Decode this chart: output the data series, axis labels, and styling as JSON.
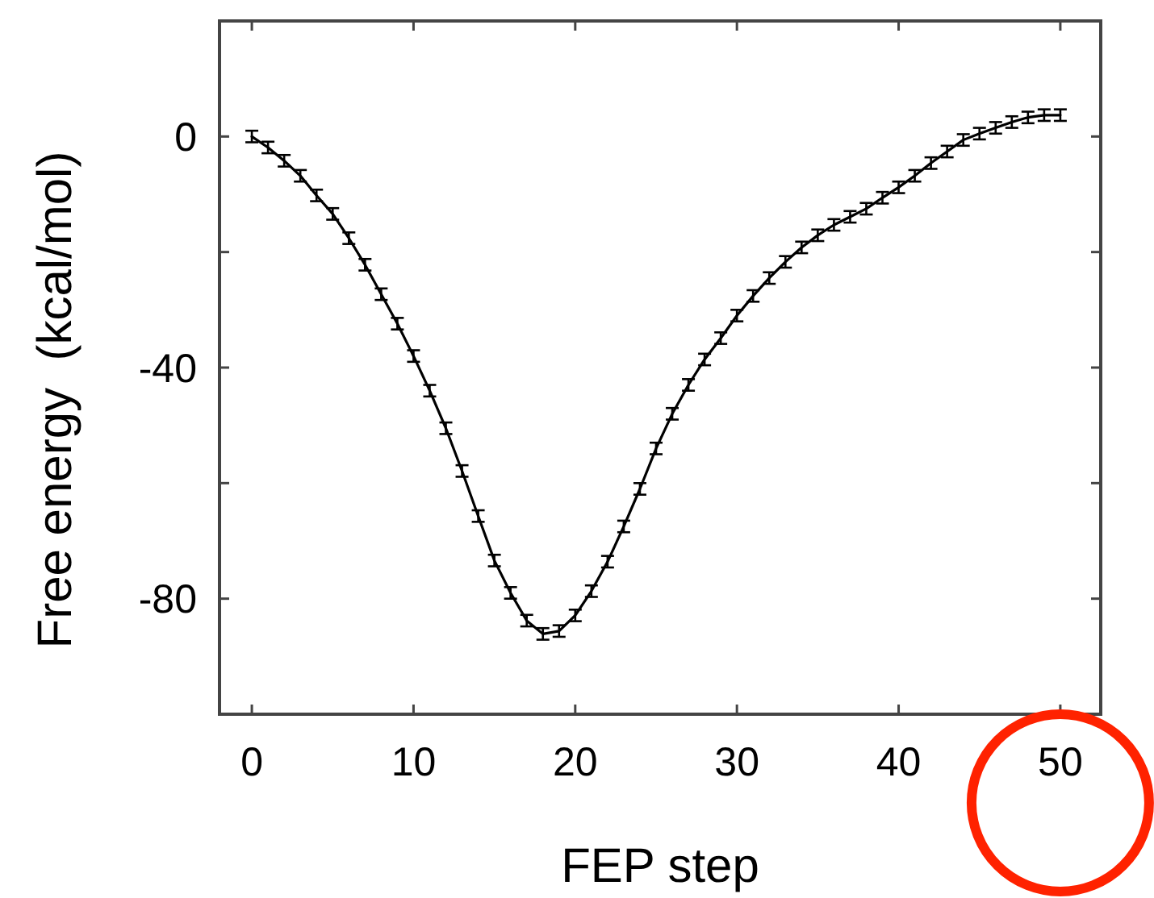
{
  "chart_data": {
    "type": "line",
    "xlabel": "FEP step",
    "ylabel": "Free energy  (kcal/mol)",
    "x": [
      0,
      1,
      2,
      3,
      4,
      5,
      6,
      7,
      8,
      9,
      10,
      11,
      12,
      13,
      14,
      15,
      16,
      17,
      18,
      19,
      20,
      21,
      22,
      23,
      24,
      25,
      26,
      27,
      28,
      29,
      30,
      31,
      32,
      33,
      34,
      35,
      36,
      37,
      38,
      39,
      40,
      41,
      42,
      43,
      44,
      45,
      46,
      47,
      48,
      49,
      50
    ],
    "series": [
      {
        "color": "#000000",
        "values": [
          0,
          -1.9,
          -4.2,
          -6.8,
          -10.2,
          -13.4,
          -17.6,
          -22.2,
          -27.3,
          -32.4,
          -38,
          -44,
          -50.5,
          -57.9,
          -65.7,
          -73.4,
          -79,
          -83.8,
          -86.1,
          -85.6,
          -82.9,
          -78.7,
          -73.6,
          -67.5,
          -61,
          -54,
          -48,
          -43,
          -38.6,
          -34.9,
          -31,
          -27.6,
          -24.5,
          -21.7,
          -19.2,
          -17.1,
          -15.3,
          -13.9,
          -12.5,
          -10.6,
          -8.8,
          -6.8,
          -4.6,
          -2.6,
          -0.6,
          0.5,
          1.5,
          2.5,
          3.3,
          3.7,
          3.7
        ],
        "errors": [
          1,
          1,
          1,
          1,
          1,
          1,
          1,
          1,
          1,
          1,
          1,
          1,
          1,
          1,
          1,
          1,
          1,
          1,
          1,
          1,
          1,
          1,
          1,
          1,
          1,
          1,
          1,
          1,
          1,
          1,
          1,
          1,
          1,
          1,
          1,
          1,
          1,
          1,
          1,
          1,
          1,
          1,
          1,
          1,
          1,
          1,
          1,
          1,
          1,
          1,
          1
        ]
      }
    ],
    "xlim": [
      -2,
      52.5
    ],
    "xticks": [
      0,
      10,
      20,
      30,
      40,
      50
    ],
    "ylim": [
      -100,
      20
    ],
    "yticks": [
      -80,
      {
        "value": -60,
        "label": null
      },
      -40,
      {
        "value": -20,
        "label": null
      },
      0
    ],
    "grid": false,
    "marker": "none",
    "line_style": "solid"
  }
}
